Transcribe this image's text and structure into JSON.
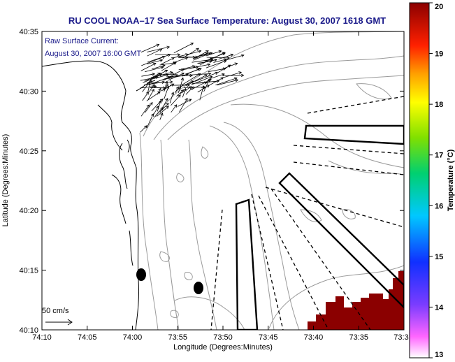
{
  "title": "RU COOL  NOAA–17  Sea Surface Temperature:  August 30, 2007 1618 GMT",
  "annotation": {
    "line1": "Raw Surface Current:",
    "line2": "August 30, 2007 16:00 GMT"
  },
  "axes": {
    "xlabel": "Longitude (Degrees:Minutes)",
    "ylabel": "Latitude (Degrees:Minutes)",
    "xticks": [
      "74:10",
      "74:05",
      "74:00",
      "73:55",
      "73:50",
      "73:45",
      "73:40",
      "73:35",
      "73:3"
    ],
    "yticks": [
      "40:35",
      "40:30",
      "40:25",
      "40:20",
      "40:15",
      "40:10"
    ]
  },
  "colorbar": {
    "label": "Temperature (°C)",
    "ticks": [
      "20",
      "19",
      "18",
      "17",
      "16",
      "15",
      "14",
      "13"
    ],
    "min": 13,
    "max": 20
  },
  "scale_label": "50 cm/s",
  "colors": {
    "title": "#1a1a8a",
    "warm_water": "#8b0000",
    "contour": "#999999",
    "coast": "#000000"
  }
}
